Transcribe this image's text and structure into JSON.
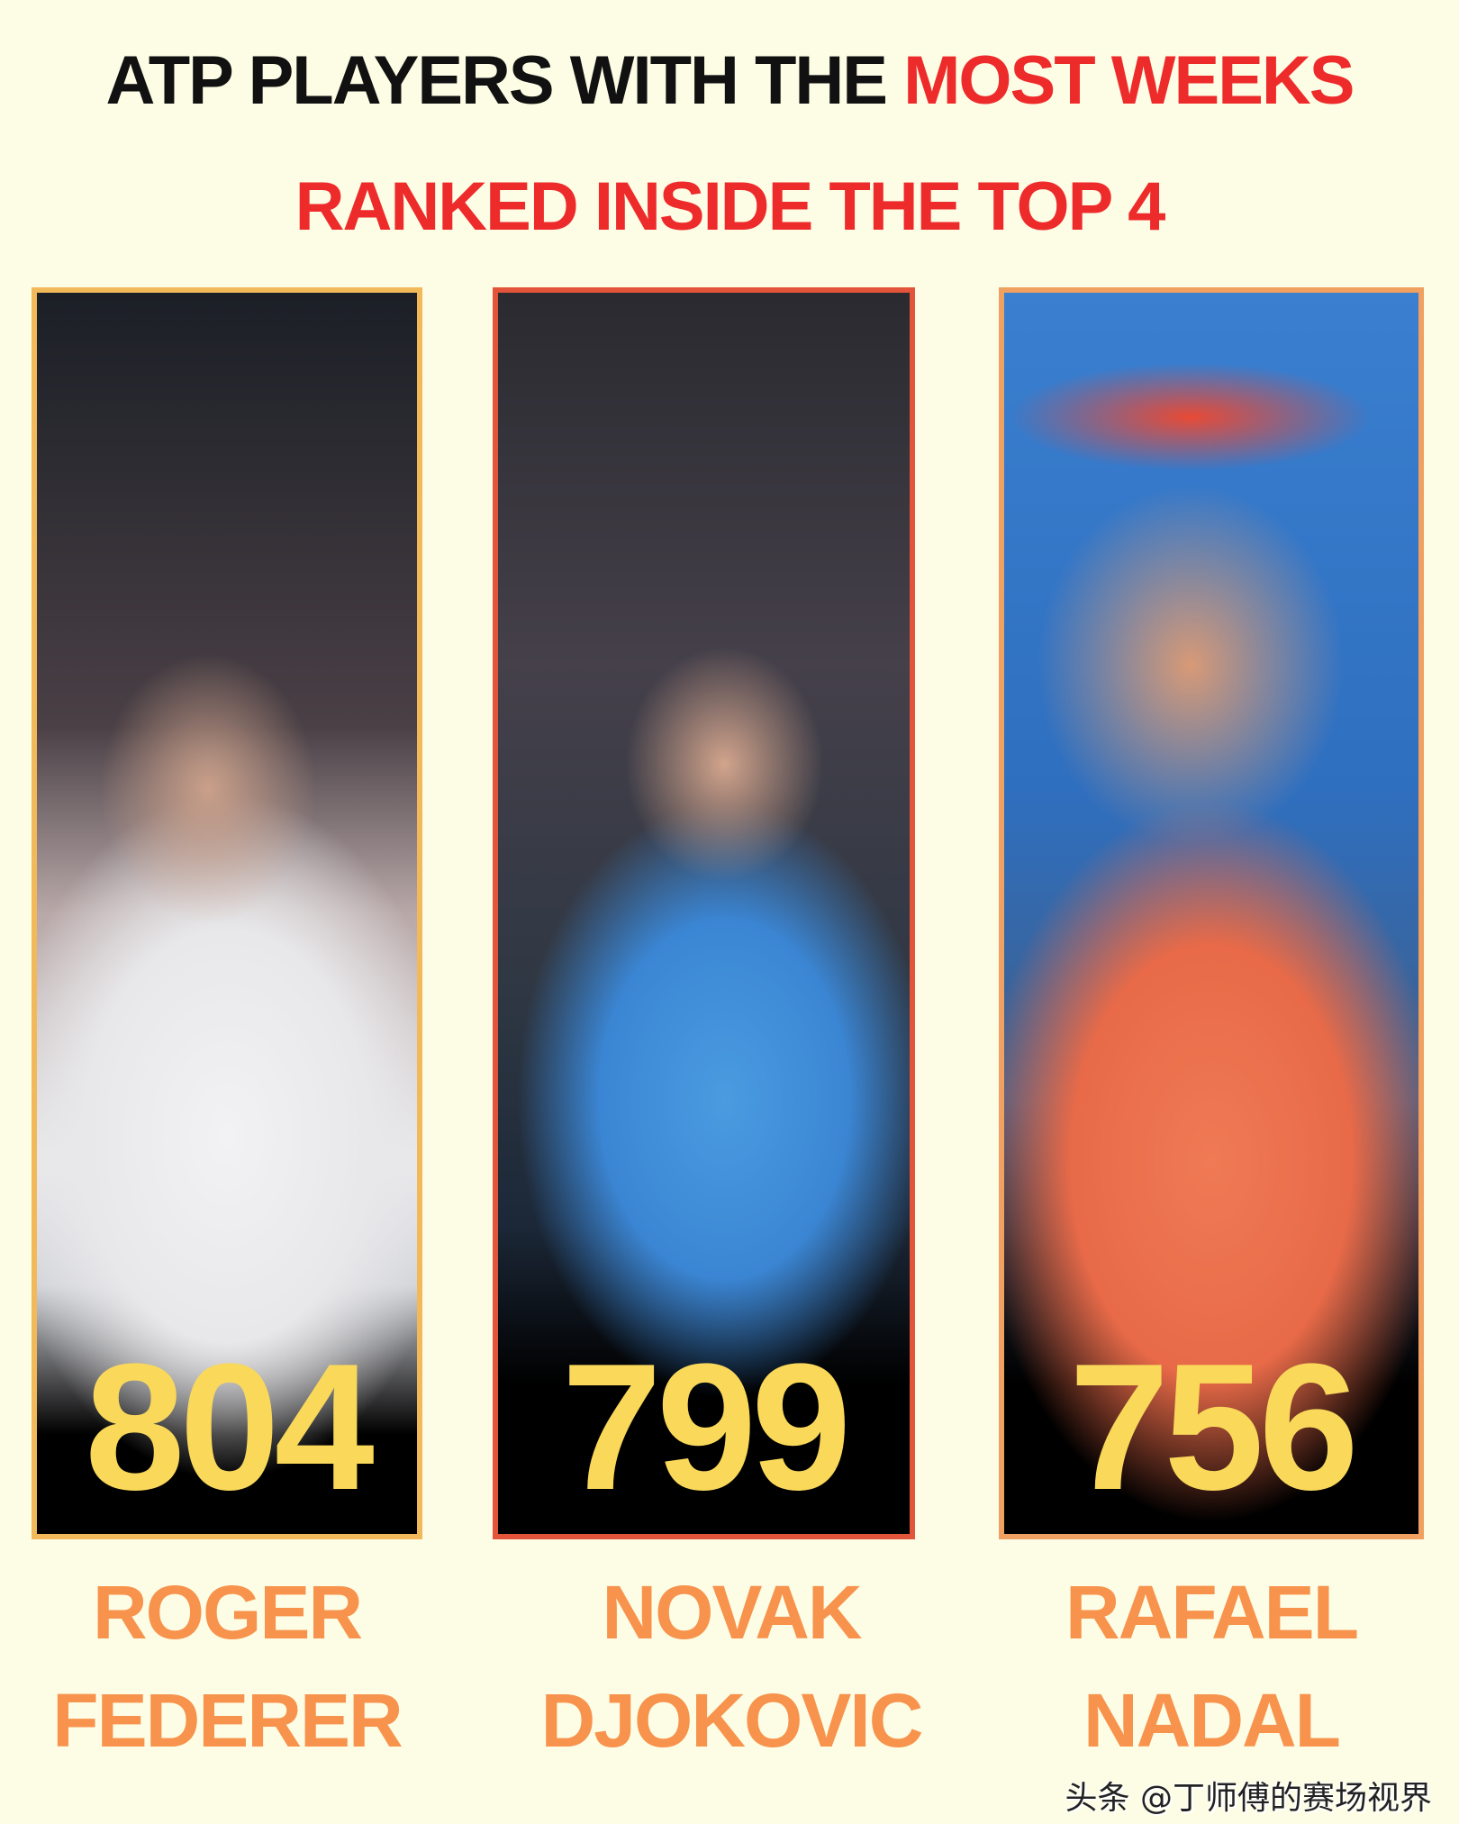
{
  "title": {
    "line1_black": "ATP PLAYERS WITH THE ",
    "line1_red": "MOST WEEKS",
    "line2": "RANKED INSIDE THE TOP 4"
  },
  "colors": {
    "background": "#fdfde6",
    "accent_red": "#ee2b2b",
    "number_yellow": "#f9d85a",
    "name_orange": "#f7934c"
  },
  "players": [
    {
      "weeks": "804",
      "first": "ROGER",
      "last": "FEDERER"
    },
    {
      "weeks": "799",
      "first": "NOVAK",
      "last": "DJOKOVIC"
    },
    {
      "weeks": "756",
      "first": "RAFAEL",
      "last": "NADAL"
    }
  ],
  "watermark": "头条 @丁师傅的赛场视界"
}
